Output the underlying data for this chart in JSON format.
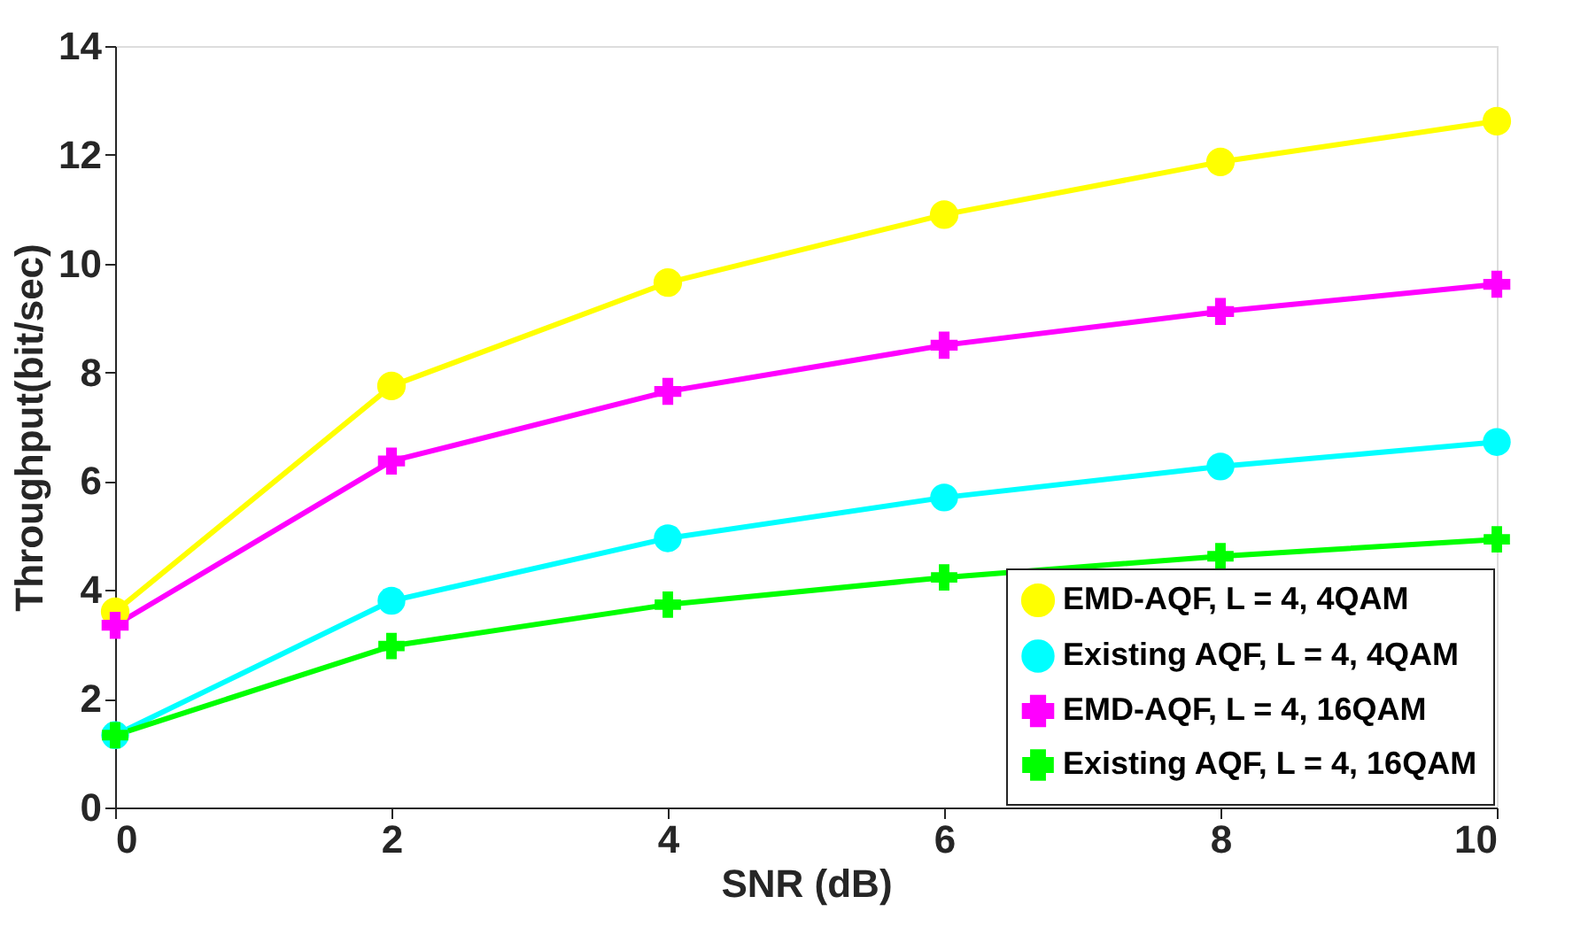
{
  "chart_data": {
    "type": "line",
    "xlabel": "SNR (dB)",
    "ylabel": "Throughput(bit/sec)",
    "x": [
      0,
      2,
      4,
      6,
      8,
      10
    ],
    "series": [
      {
        "name": "EMD-AQF, L = 4, 4QAM",
        "color": "#ffff00",
        "marker": "circle",
        "values": [
          3.6,
          7.75,
          9.65,
          10.9,
          11.87,
          12.62
        ]
      },
      {
        "name": "Existing AQF, L = 4, 4QAM",
        "color": "#00ffff",
        "marker": "circle",
        "values": [
          1.33,
          3.8,
          4.95,
          5.7,
          6.27,
          6.72
        ]
      },
      {
        "name": "EMD-AQF, L = 4, 16QAM",
        "color": "#ff00ff",
        "marker": "cross",
        "values": [
          3.35,
          6.37,
          7.65,
          8.5,
          9.12,
          9.62
        ]
      },
      {
        "name": "Existing AQF, L = 4, 16QAM",
        "color": "#00ff00",
        "marker": "cross",
        "values": [
          1.33,
          2.97,
          3.73,
          4.23,
          4.62,
          4.93
        ]
      }
    ],
    "xlim": [
      0,
      10
    ],
    "xticks": [
      0,
      2,
      4,
      6,
      8,
      10
    ],
    "ylim": [
      0,
      14
    ],
    "yticks": [
      0,
      2,
      4,
      6,
      8,
      10,
      12,
      14
    ],
    "grid": false,
    "legend": "bottom right",
    "line_style": "solid"
  }
}
